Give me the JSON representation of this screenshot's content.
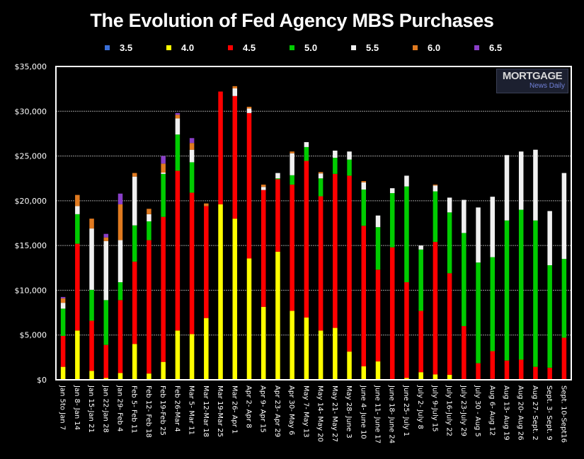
{
  "chart_data": {
    "type": "bar",
    "stacked": true,
    "title": "The Evolution of Fed Agency MBS Purchases",
    "xlabel": "",
    "ylabel": "",
    "ylim": [
      0,
      35000
    ],
    "yticks": [
      0,
      5000,
      10000,
      15000,
      20000,
      25000,
      30000,
      35000
    ],
    "ytick_labels": [
      "$0",
      "$5,000",
      "$10,000",
      "$15,000",
      "$20,000",
      "$25,000",
      "$30,000",
      "$35,000"
    ],
    "grid": true,
    "legend_position": "top-center",
    "categories": [
      "Jan 5to Jan 7",
      "Jan 8- Jan 14",
      "Jan 15-Jan 21",
      "Jan 22-Jan 28",
      "Jan 29- Feb 4",
      "Feb 5- Feb 11",
      "Feb 12- Feb 18",
      "Feb 19-Feb 25",
      "Feb 26-Mar 4",
      "Mar 5- Mar 11",
      "Mar 12-Mar 18",
      "Mar 19-Mar  25",
      "Mar 26- Apr 1",
      "Apr 2- Apr 8",
      "Apr 9- Apr 15",
      "Apr 23- Apr 29",
      "Apr 30- May 6",
      "May 7- May 13",
      "May 14- May 20",
      "May 21- May 27",
      "May 28- June 3",
      "June 4- June 10",
      "June 11- June 17",
      "June 18- June 24",
      "June 25- July 1",
      "July 2- July 8",
      "July 9-July 15",
      "July 16-July 22",
      "July 23-July 29",
      "July 30 - Aug 5",
      "Aug 6- Aug 12",
      "Aug 13- Aug 19",
      "Aug 20- Aug 26",
      "Aug 27- Sept. 2",
      "Sept. 3- Sept. 9",
      "Sept. 10-Sept16"
    ],
    "series": [
      {
        "name": "3.5",
        "color": "#3a6fd8",
        "values": [
          0,
          0,
          0,
          0,
          0,
          0,
          0,
          0,
          0,
          0,
          0,
          0,
          0,
          0,
          0,
          0,
          0,
          0,
          0,
          0,
          0,
          0,
          0,
          0,
          0,
          0,
          0,
          0,
          0,
          0,
          100,
          0,
          0,
          0,
          0,
          0
        ]
      },
      {
        "name": "4.0",
        "color": "#ffff00",
        "values": [
          1450,
          5500,
          1000,
          200,
          750,
          4000,
          700,
          2000,
          5500,
          5100,
          6900,
          19600,
          18000,
          13550,
          8150,
          14300,
          7700,
          6950,
          5500,
          5800,
          3150,
          1500,
          2050,
          0,
          200,
          850,
          600,
          550,
          0,
          0,
          0,
          0,
          100,
          0,
          0,
          0
        ]
      },
      {
        "name": "4.5",
        "color": "#ff0000",
        "values": [
          3450,
          9700,
          5600,
          3700,
          8150,
          9200,
          14900,
          16200,
          17850,
          15800,
          12500,
          12600,
          13700,
          16250,
          13050,
          8100,
          14100,
          17500,
          15000,
          17200,
          19650,
          15700,
          10250,
          14800,
          10700,
          6850,
          14800,
          11350,
          6000,
          1850,
          3100,
          2150,
          2150,
          1450,
          1350,
          4700
        ]
      },
      {
        "name": "5.0",
        "color": "#00cc00",
        "values": [
          3050,
          3300,
          3450,
          5000,
          2000,
          4050,
          2100,
          4800,
          4050,
          3400,
          0,
          0,
          0,
          0,
          0,
          100,
          1050,
          1550,
          2000,
          1800,
          1800,
          4050,
          4750,
          6050,
          10700,
          6850,
          5650,
          6800,
          10400,
          11250,
          10500,
          15650,
          16750,
          16350,
          11450,
          8800
        ]
      },
      {
        "name": "5.5",
        "color": "#f0f0f0",
        "values": [
          650,
          900,
          6850,
          6600,
          4700,
          5450,
          800,
          150,
          1800,
          1400,
          0,
          0,
          850,
          500,
          350,
          600,
          2450,
          550,
          550,
          800,
          900,
          800,
          1300,
          550,
          1200,
          450,
          650,
          1650,
          3700,
          6150,
          6750,
          7300,
          6500,
          7900,
          6050,
          9600
        ]
      },
      {
        "name": "6.0",
        "color": "#e07a20",
        "values": [
          500,
          1250,
          1100,
          400,
          4000,
          400,
          600,
          1000,
          400,
          750,
          300,
          0,
          250,
          200,
          250,
          0,
          200,
          0,
          150,
          0,
          0,
          150,
          0,
          0,
          0,
          0,
          100,
          0,
          0,
          0,
          0,
          0,
          0,
          0,
          0,
          0
        ]
      },
      {
        "name": "6.5",
        "color": "#8a3fc8",
        "values": [
          150,
          0,
          0,
          400,
          1200,
          0,
          0,
          850,
          200,
          550,
          0,
          0,
          0,
          0,
          0,
          0,
          0,
          0,
          0,
          0,
          0,
          0,
          0,
          0,
          0,
          0,
          0,
          0,
          0,
          0,
          0,
          0,
          0,
          0,
          0,
          0
        ]
      }
    ]
  },
  "logo": {
    "line1": "MORTGAGE",
    "line2": "News Daily"
  }
}
